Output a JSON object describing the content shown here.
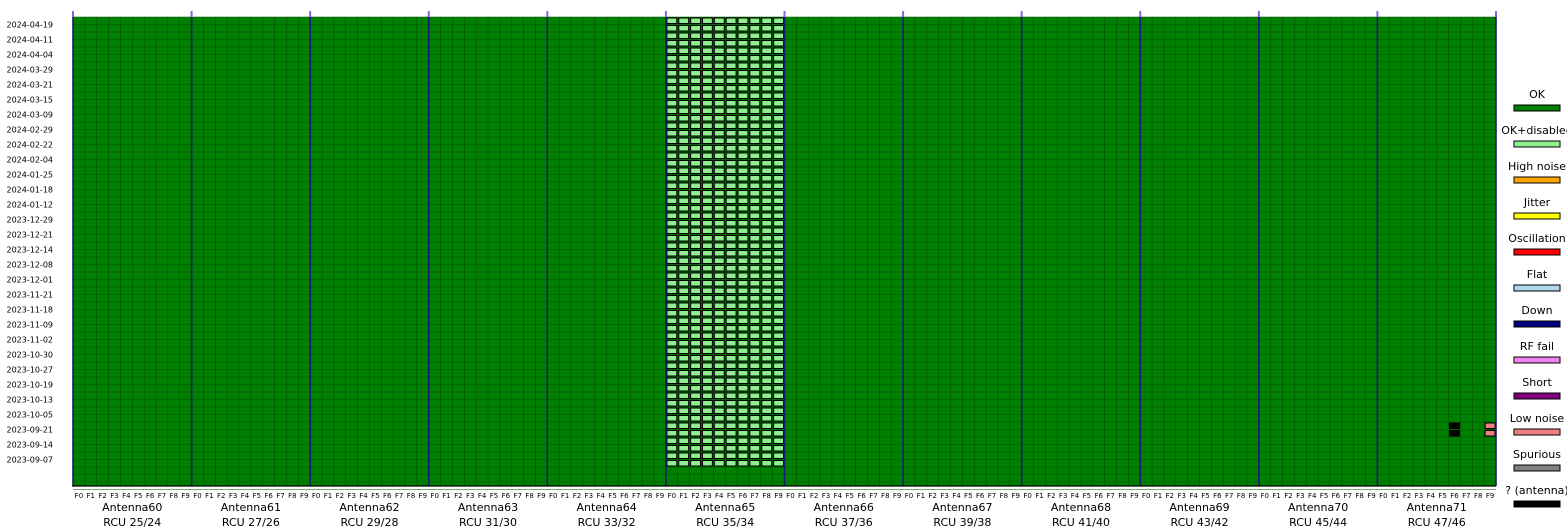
{
  "chart_data": {
    "type": "heatmap",
    "dates": [
      "2024-04-19",
      "2024-04-11",
      "2024-04-04",
      "2024-03-29",
      "2024-03-21",
      "2024-03-15",
      "2024-03-09",
      "2024-02-29",
      "2024-02-22",
      "2024-02-04",
      "2024-01-25",
      "2024-01-18",
      "2024-01-12",
      "2023-12-29",
      "2023-12-21",
      "2023-12-14",
      "2023-12-08",
      "2023-12-01",
      "2023-11-21",
      "2023-11-18",
      "2023-11-09",
      "2023-11-02",
      "2023-10-30",
      "2023-10-27",
      "2023-10-19",
      "2023-10-13",
      "2023-10-05",
      "2023-09-21",
      "2023-09-14",
      "2023-09-07"
    ],
    "rows_per_date": 1,
    "antennas": [
      {
        "name": "Antenna60",
        "rcu": "RCU 25/24"
      },
      {
        "name": "Antenna61",
        "rcu": "RCU 27/26"
      },
      {
        "name": "Antenna62",
        "rcu": "RCU 29/28"
      },
      {
        "name": "Antenna63",
        "rcu": "RCU 31/30"
      },
      {
        "name": "Antenna64",
        "rcu": "RCU 33/32"
      },
      {
        "name": "Antenna65",
        "rcu": "RCU 35/34"
      },
      {
        "name": "Antenna66",
        "rcu": "RCU 37/36"
      },
      {
        "name": "Antenna67",
        "rcu": "RCU 39/38"
      },
      {
        "name": "Antenna68",
        "rcu": "RCU 41/40"
      },
      {
        "name": "Antenna69",
        "rcu": "RCU 43/42"
      },
      {
        "name": "Antenna70",
        "rcu": "RCU 45/44"
      },
      {
        "name": "Antenna71",
        "rcu": "RCU 47/46"
      }
    ],
    "filters": [
      "F0",
      "F1",
      "F2",
      "F3",
      "F4",
      "F5",
      "F6",
      "F7",
      "F8",
      "F9"
    ],
    "default_status": "OK",
    "status_regions": [
      {
        "status": "OK+disabled",
        "antenna_index": 5,
        "filter_from": 0,
        "filter_to": 9,
        "date_from": "2024-04-19",
        "date_to": "2023-09-07"
      },
      {
        "status": "? (antenna)",
        "antenna_index": 11,
        "filter_from": 6,
        "filter_to": 6,
        "date_from": "2023-09-21",
        "date_to": "2023-09-21"
      },
      {
        "status": "Low noise",
        "antenna_index": 11,
        "filter_from": 9,
        "filter_to": 9,
        "date_from": "2023-09-21",
        "date_to": "2023-09-21"
      }
    ],
    "legend": [
      {
        "label": "OK",
        "color": "#008000"
      },
      {
        "label": "OK+disabled",
        "color": "#90ee90"
      },
      {
        "label": "High noise",
        "color": "#ffa500"
      },
      {
        "label": "Jitter",
        "color": "#ffff00"
      },
      {
        "label": "Oscillation",
        "color": "#ff0000"
      },
      {
        "label": "Flat",
        "color": "#add8e6"
      },
      {
        "label": "Down",
        "color": "#000080"
      },
      {
        "label": "RF fail",
        "color": "#ee82ee"
      },
      {
        "label": "Short",
        "color": "#800080"
      },
      {
        "label": "Low noise",
        "color": "#f08080"
      },
      {
        "label": "Spurious",
        "color": "#808080"
      },
      {
        "label": "? (antenna)",
        "color": "#000000"
      }
    ],
    "legend_placement": "right",
    "grid": true,
    "antenna_divider_color": "#191970",
    "top_tick_color": "#7b68ee"
  }
}
